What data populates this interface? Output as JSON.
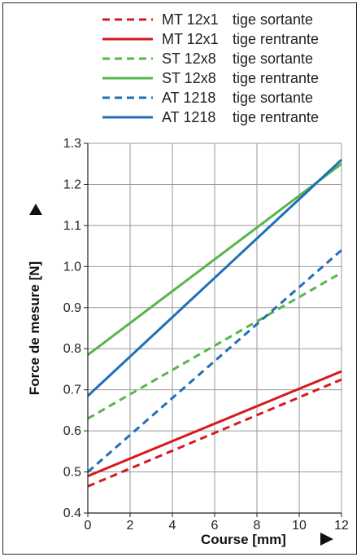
{
  "chart_data": {
    "type": "line",
    "xlabel": "Course [mm]",
    "ylabel": "Force de mesure [N]",
    "xlim": [
      0,
      12
    ],
    "ylim": [
      0.4,
      1.3
    ],
    "xticks": [
      0,
      2,
      4,
      6,
      8,
      10,
      12
    ],
    "yticks": [
      0.4,
      0.5,
      0.6,
      0.7,
      0.8,
      0.9,
      1.0,
      1.1,
      1.2,
      1.3
    ],
    "grid": true,
    "legend_position": "top",
    "series": [
      {
        "name": "MT 12x1",
        "name_suffix": "tige sortante",
        "color": "#d7191f",
        "dash": true,
        "x": [
          0,
          12
        ],
        "y": [
          0.465,
          0.725
        ]
      },
      {
        "name": "MT 12x1",
        "name_suffix": "tige rentrante",
        "color": "#d7191f",
        "dash": false,
        "x": [
          0,
          12
        ],
        "y": [
          0.49,
          0.745
        ]
      },
      {
        "name": "ST 12x8",
        "name_suffix": "tige sortante",
        "color": "#57b649",
        "dash": true,
        "x": [
          0,
          12
        ],
        "y": [
          0.63,
          0.985
        ]
      },
      {
        "name": "ST 12x8",
        "name_suffix": "tige rentrante",
        "color": "#57b649",
        "dash": false,
        "x": [
          0,
          12
        ],
        "y": [
          0.785,
          1.25
        ]
      },
      {
        "name": "AT 1218",
        "name_suffix": "tige sortante",
        "color": "#1f6fb8",
        "dash": true,
        "x": [
          0,
          12
        ],
        "y": [
          0.5,
          1.04
        ]
      },
      {
        "name": "AT 1218",
        "name_suffix": "tige rentrante",
        "color": "#1f6fb8",
        "dash": false,
        "x": [
          0,
          12
        ],
        "y": [
          0.685,
          1.26
        ]
      }
    ]
  }
}
